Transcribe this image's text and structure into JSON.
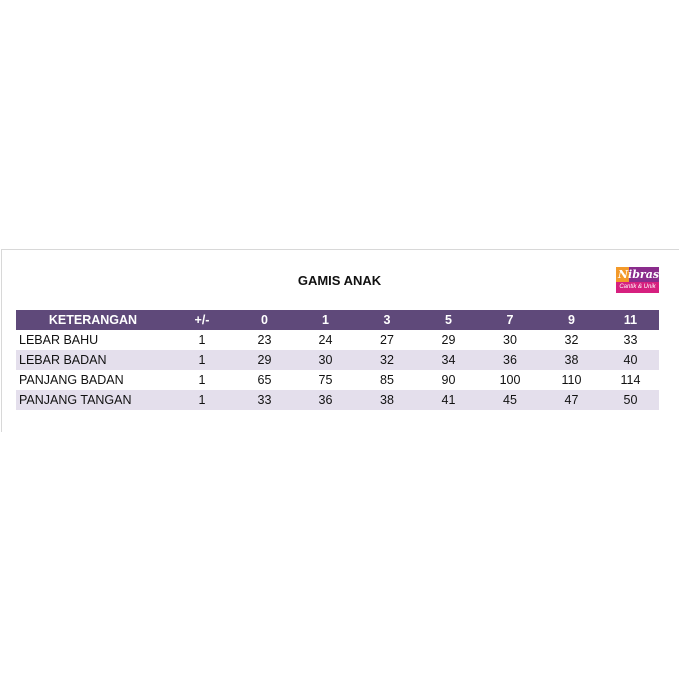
{
  "title": "GAMIS ANAK",
  "logo": {
    "brand": "Nibras",
    "tagline": "Cantik & Unik"
  },
  "table": {
    "headers": [
      "KETERANGAN",
      "+/-",
      "0",
      "1",
      "3",
      "5",
      "7",
      "9",
      "11"
    ],
    "rows": [
      [
        "LEBAR BAHU",
        "1",
        "23",
        "24",
        "27",
        "29",
        "30",
        "32",
        "33"
      ],
      [
        "LEBAR BADAN",
        "1",
        "29",
        "30",
        "32",
        "34",
        "36",
        "38",
        "40"
      ],
      [
        "PANJANG BADAN",
        "1",
        "65",
        "75",
        "85",
        "90",
        "100",
        "110",
        "114"
      ],
      [
        "PANJANG TANGAN",
        "1",
        "33",
        "36",
        "38",
        "41",
        "45",
        "47",
        "50"
      ]
    ]
  },
  "colors": {
    "header_bg": "#5f497a",
    "alt_row_bg": "#e4dfec"
  }
}
